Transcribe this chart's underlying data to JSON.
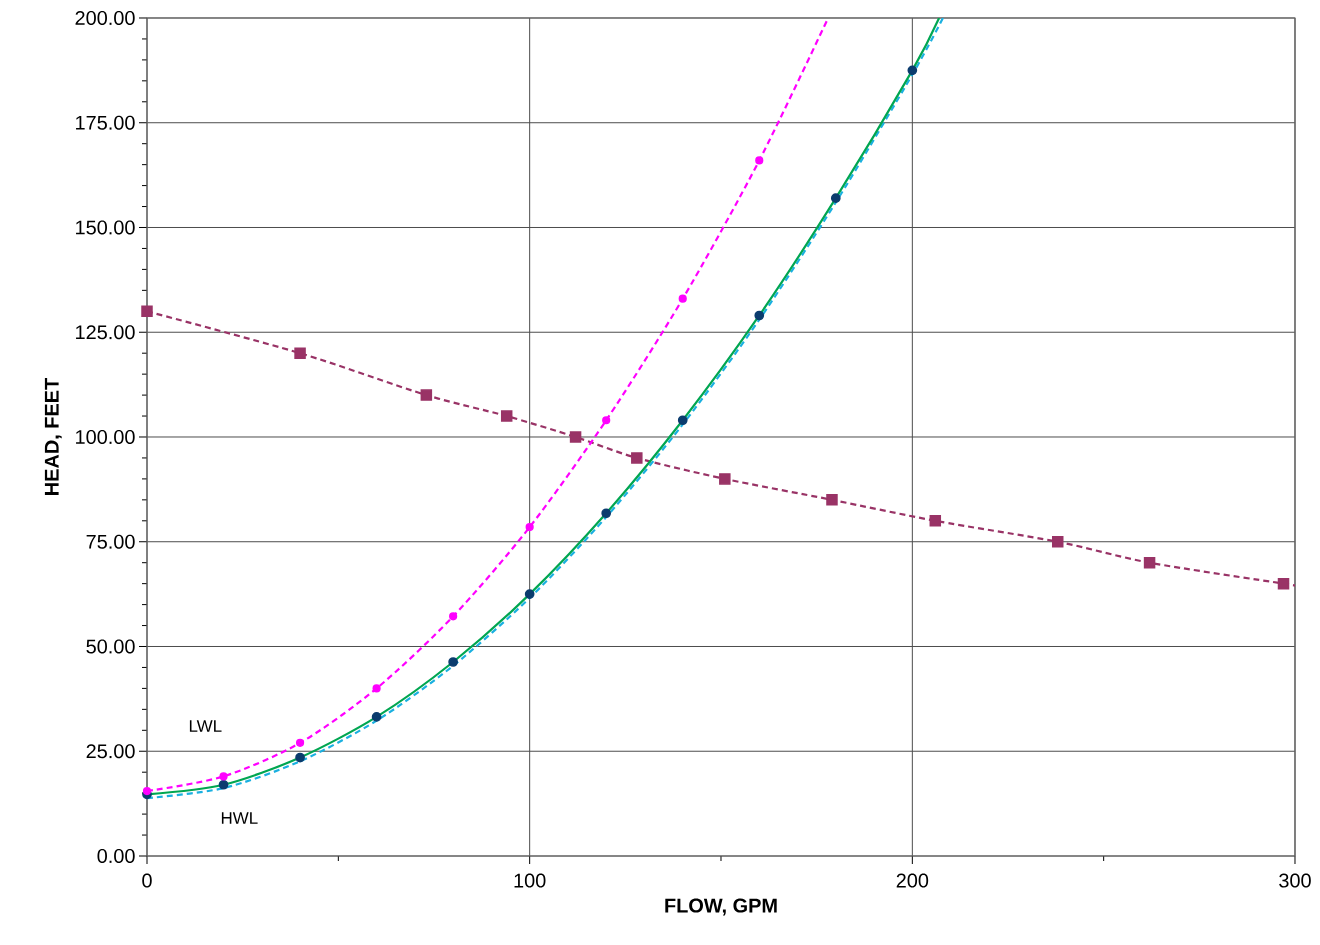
{
  "chart_data": {
    "type": "line",
    "xlabel": "FLOW, GPM",
    "ylabel": "HEAD, FEET",
    "xlim": [
      0,
      300
    ],
    "ylim": [
      0,
      200
    ],
    "xticks": [
      0,
      {
        "value": 50,
        "label": null
      },
      100,
      {
        "value": 150,
        "label": null
      },
      200,
      {
        "value": 250,
        "label": null
      },
      300
    ],
    "yticks": [
      {
        "value": 0,
        "label": "0.00"
      },
      {
        "value": 5,
        "label": null
      },
      {
        "value": 10,
        "label": null
      },
      {
        "value": 15,
        "label": null
      },
      {
        "value": 20,
        "label": null
      },
      {
        "value": 25,
        "label": "25.00"
      },
      {
        "value": 30,
        "label": null
      },
      {
        "value": 35,
        "label": null
      },
      {
        "value": 40,
        "label": null
      },
      {
        "value": 45,
        "label": null
      },
      {
        "value": 50,
        "label": "50.00"
      },
      {
        "value": 55,
        "label": null
      },
      {
        "value": 60,
        "label": null
      },
      {
        "value": 65,
        "label": null
      },
      {
        "value": 70,
        "label": null
      },
      {
        "value": 75,
        "label": "75.00"
      },
      {
        "value": 80,
        "label": null
      },
      {
        "value": 85,
        "label": null
      },
      {
        "value": 90,
        "label": null
      },
      {
        "value": 95,
        "label": null
      },
      {
        "value": 100,
        "label": "100.00"
      },
      {
        "value": 105,
        "label": null
      },
      {
        "value": 110,
        "label": null
      },
      {
        "value": 115,
        "label": null
      },
      {
        "value": 120,
        "label": null
      },
      {
        "value": 125,
        "label": "125.00"
      },
      {
        "value": 130,
        "label": null
      },
      {
        "value": 135,
        "label": null
      },
      {
        "value": 140,
        "label": null
      },
      {
        "value": 145,
        "label": null
      },
      {
        "value": 150,
        "label": "150.00"
      },
      {
        "value": 155,
        "label": null
      },
      {
        "value": 160,
        "label": null
      },
      {
        "value": 165,
        "label": null
      },
      {
        "value": 170,
        "label": null
      },
      {
        "value": 175,
        "label": "175.00"
      },
      {
        "value": 180,
        "label": null
      },
      {
        "value": 185,
        "label": null
      },
      {
        "value": 190,
        "label": null
      },
      {
        "value": 195,
        "label": null
      },
      {
        "value": 200,
        "label": "200.00"
      }
    ],
    "grid": true,
    "series": [
      {
        "color": "#993366",
        "line_style": "dashed",
        "x": [
          0,
          40,
          73,
          94,
          112,
          128,
          151,
          179,
          206,
          238,
          262,
          297,
          300
        ],
        "values": [
          130,
          120,
          110,
          105,
          100,
          95,
          90,
          85,
          80,
          75,
          70,
          65,
          64.5
        ]
      },
      {
        "type": "scatter",
        "color": "#993366",
        "marker": "square",
        "x": [
          0,
          40,
          73,
          94,
          112,
          128,
          151,
          179,
          206,
          238,
          262,
          297
        ],
        "values": [
          130,
          120,
          110,
          105,
          100,
          95,
          90,
          85,
          80,
          75,
          70,
          65
        ]
      },
      {
        "color": "#ff00ff",
        "line_style": "dashed",
        "x": [
          0,
          20,
          40,
          60,
          80,
          100,
          120,
          140,
          160,
          178
        ],
        "values": [
          15.5,
          19,
          27,
          40,
          57.2,
          78.5,
          104,
          133,
          166,
          200
        ]
      },
      {
        "type": "scatter",
        "color": "#ff00ff",
        "marker": "circle",
        "x": [
          0,
          20,
          40,
          60,
          80,
          100,
          120,
          140,
          160
        ],
        "values": [
          15.5,
          19,
          27,
          40,
          57.2,
          78.5,
          104,
          133,
          166
        ]
      },
      {
        "color": "#1ab0e0",
        "line_style": "dashed",
        "x": [
          0,
          20,
          40,
          60,
          80,
          100,
          120,
          140,
          160,
          180,
          200,
          208
        ],
        "values": [
          13.8,
          16.2,
          22.6,
          32.3,
          45.4,
          61.6,
          80.9,
          103,
          128,
          156,
          186.5,
          200
        ]
      },
      {
        "color": "#00a651",
        "line_style": "solid",
        "x": [
          0,
          20,
          40,
          60,
          80,
          100,
          120,
          140,
          160,
          180,
          200,
          207
        ],
        "values": [
          14.7,
          17,
          23.5,
          33.2,
          46.3,
          62.5,
          81.8,
          104,
          129,
          157,
          187.5,
          200
        ]
      },
      {
        "type": "scatter",
        "color": "#0b3c6e",
        "marker": "circle",
        "x": [
          0,
          20,
          40,
          60,
          80,
          100,
          120,
          140,
          160,
          180,
          200
        ],
        "values": [
          14.7,
          17,
          23.5,
          33.2,
          46.3,
          62.5,
          81.8,
          104,
          129,
          157,
          187.5
        ]
      }
    ],
    "annotations": [
      "LWL",
      "HWL"
    ]
  }
}
